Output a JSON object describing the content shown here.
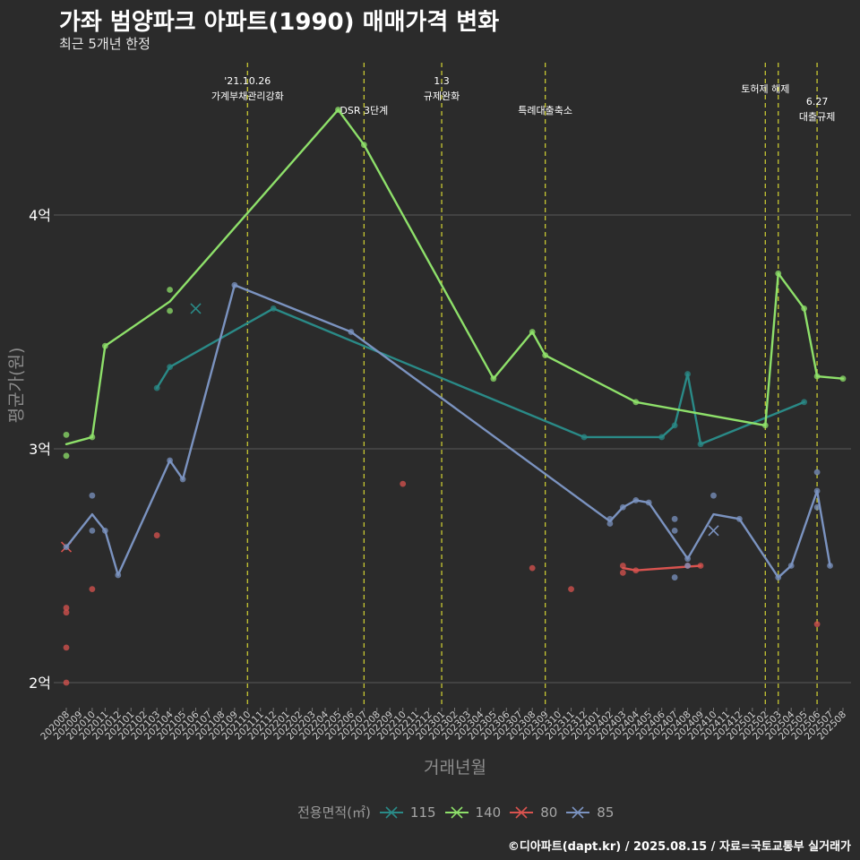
{
  "colors": {
    "background": "#2b2b2b",
    "grid": "#5a5a5a",
    "event_line": "#c8c832",
    "s115": "#2a8a87",
    "s140": "#8ee06a",
    "s80": "#d9534f",
    "s85": "#7b93c0"
  },
  "chart_data": {
    "type": "line",
    "title": "가좌 범양파크 아파트(1990) 매매가격 변화",
    "subtitle": "최근 5개년 한정",
    "xlabel": "거래년월",
    "ylabel": "평균가(원)",
    "caption": "©디아파트(dapt.kr) / 2025.08.15 / 자료=국토교통부 실거래가",
    "legend_title": "전용면적(㎡)",
    "legend_position": "bottom",
    "grid": true,
    "x_categories": [
      "202008",
      "202009",
      "202010",
      "202011",
      "202012",
      "202101",
      "202102",
      "202103",
      "202104",
      "202105",
      "202106",
      "202107",
      "202108",
      "202109",
      "202110",
      "202111",
      "202112",
      "202201",
      "202202",
      "202203",
      "202204",
      "202205",
      "202206",
      "202207",
      "202208",
      "202209",
      "202210",
      "202211",
      "202212",
      "202301",
      "202302",
      "202303",
      "202304",
      "202305",
      "202306",
      "202307",
      "202308",
      "202309",
      "202310",
      "202311",
      "202312",
      "202401",
      "202402",
      "202403",
      "202404",
      "202405",
      "202406",
      "202407",
      "202408",
      "202409",
      "202410",
      "202411",
      "202412",
      "202501",
      "202502",
      "202503",
      "202504",
      "202505",
      "202506",
      "202507",
      "202508"
    ],
    "ylim": [
      1.9,
      4.5
    ],
    "y_ticks": [
      {
        "value": 2,
        "label": "2억"
      },
      {
        "value": 3,
        "label": "3억"
      },
      {
        "value": 4,
        "label": "4억"
      }
    ],
    "events": [
      {
        "x": "202110",
        "label": "'21.10.26\n가계부채관리강화",
        "level": 1
      },
      {
        "x": "202207",
        "label": "DSR 3단계",
        "level": 2
      },
      {
        "x": "202301",
        "label": "1.3\n규제완화",
        "level": 1
      },
      {
        "x": "202309",
        "label": "특례대출축소",
        "level": 2
      },
      {
        "x": "202502",
        "label": "토허제 해제",
        "level": 0
      },
      {
        "x": "202503",
        "label": "",
        "level": 0
      },
      {
        "x": "202506",
        "label": "6.27\n대출규제",
        "level": 3
      }
    ],
    "series": [
      {
        "name": "115",
        "color_key": "s115",
        "line": [
          [
            "202103",
            3.26
          ],
          [
            "202104",
            3.35
          ],
          [
            "202112",
            3.6
          ],
          [
            "202312",
            3.05
          ],
          [
            "202406",
            3.05
          ],
          [
            "202407",
            3.1
          ],
          [
            "202408",
            3.32
          ],
          [
            "202409",
            3.02
          ],
          [
            "202505",
            3.2
          ]
        ],
        "points": [
          [
            "202103",
            3.26
          ],
          [
            "202104",
            3.35
          ],
          [
            "202112",
            3.6
          ],
          [
            "202312",
            3.05
          ],
          [
            "202406",
            3.05
          ],
          [
            "202407",
            3.1
          ],
          [
            "202408",
            3.32
          ],
          [
            "202409",
            3.02
          ],
          [
            "202505",
            3.2
          ]
        ],
        "crosses": [
          [
            "202106",
            3.6
          ]
        ]
      },
      {
        "name": "140",
        "color_key": "s140",
        "line": [
          [
            "202008",
            3.02
          ],
          [
            "202010",
            3.05
          ],
          [
            "202011",
            3.44
          ],
          [
            "202104",
            3.63
          ],
          [
            "202205",
            4.45
          ],
          [
            "202207",
            4.3
          ],
          [
            "202305",
            3.3
          ],
          [
            "202308",
            3.5
          ],
          [
            "202309",
            3.4
          ],
          [
            "202404",
            3.2
          ],
          [
            "202502",
            3.1
          ],
          [
            "202503",
            3.75
          ],
          [
            "202505",
            3.6
          ],
          [
            "202506",
            3.31
          ],
          [
            "202508",
            3.3
          ]
        ],
        "points": [
          [
            "202008",
            3.06
          ],
          [
            "202008",
            2.97
          ],
          [
            "202010",
            3.05
          ],
          [
            "202011",
            3.44
          ],
          [
            "202104",
            3.68
          ],
          [
            "202104",
            3.59
          ],
          [
            "202205",
            4.45
          ],
          [
            "202207",
            4.3
          ],
          [
            "202305",
            3.3
          ],
          [
            "202308",
            3.5
          ],
          [
            "202309",
            3.4
          ],
          [
            "202404",
            3.2
          ],
          [
            "202502",
            3.1
          ],
          [
            "202503",
            3.75
          ],
          [
            "202505",
            3.6
          ],
          [
            "202506",
            3.31
          ],
          [
            "202508",
            3.3
          ]
        ],
        "crosses": []
      },
      {
        "name": "80",
        "color_key": "s80",
        "line": [
          [
            "202403",
            2.49
          ],
          [
            "202404",
            2.48
          ],
          [
            "202409",
            2.5
          ]
        ],
        "points": [
          [
            "202008",
            2.32
          ],
          [
            "202008",
            2.3
          ],
          [
            "202008",
            2.15
          ],
          [
            "202008",
            2.0
          ],
          [
            "202010",
            2.4
          ],
          [
            "202103",
            2.63
          ],
          [
            "202210",
            2.85
          ],
          [
            "202308",
            2.49
          ],
          [
            "202311",
            2.4
          ],
          [
            "202403",
            2.5
          ],
          [
            "202403",
            2.47
          ],
          [
            "202404",
            2.48
          ],
          [
            "202408",
            2.5
          ],
          [
            "202409",
            2.5
          ],
          [
            "202506",
            2.25
          ]
        ],
        "crosses": [
          [
            "202008",
            2.58
          ]
        ]
      },
      {
        "name": "85",
        "color_key": "s85",
        "line": [
          [
            "202008",
            2.58
          ],
          [
            "202010",
            2.72
          ],
          [
            "202011",
            2.65
          ],
          [
            "202012",
            2.46
          ],
          [
            "202104",
            2.95
          ],
          [
            "202105",
            2.87
          ],
          [
            "202109",
            3.7
          ],
          [
            "202206",
            3.5
          ],
          [
            "202402",
            2.69
          ],
          [
            "202403",
            2.75
          ],
          [
            "202404",
            2.78
          ],
          [
            "202405",
            2.77
          ],
          [
            "202408",
            2.53
          ],
          [
            "202410",
            2.72
          ],
          [
            "202412",
            2.7
          ],
          [
            "202503",
            2.45
          ],
          [
            "202504",
            2.5
          ],
          [
            "202506",
            2.82
          ],
          [
            "202507",
            2.5
          ]
        ],
        "points": [
          [
            "202008",
            2.58
          ],
          [
            "202010",
            2.8
          ],
          [
            "202010",
            2.65
          ],
          [
            "202011",
            2.65
          ],
          [
            "202012",
            2.46
          ],
          [
            "202104",
            2.95
          ],
          [
            "202105",
            2.87
          ],
          [
            "202109",
            3.7
          ],
          [
            "202206",
            3.5
          ],
          [
            "202402",
            2.68
          ],
          [
            "202402",
            2.7
          ],
          [
            "202403",
            2.75
          ],
          [
            "202404",
            2.78
          ],
          [
            "202405",
            2.77
          ],
          [
            "202407",
            2.7
          ],
          [
            "202407",
            2.65
          ],
          [
            "202407",
            2.45
          ],
          [
            "202408",
            2.53
          ],
          [
            "202408",
            2.5
          ],
          [
            "202410",
            2.8
          ],
          [
            "202412",
            2.7
          ],
          [
            "202503",
            2.45
          ],
          [
            "202504",
            2.5
          ],
          [
            "202506",
            2.9
          ],
          [
            "202506",
            2.82
          ],
          [
            "202506",
            2.75
          ],
          [
            "202507",
            2.5
          ]
        ],
        "crosses": [
          [
            "202410",
            2.65
          ]
        ]
      }
    ]
  }
}
